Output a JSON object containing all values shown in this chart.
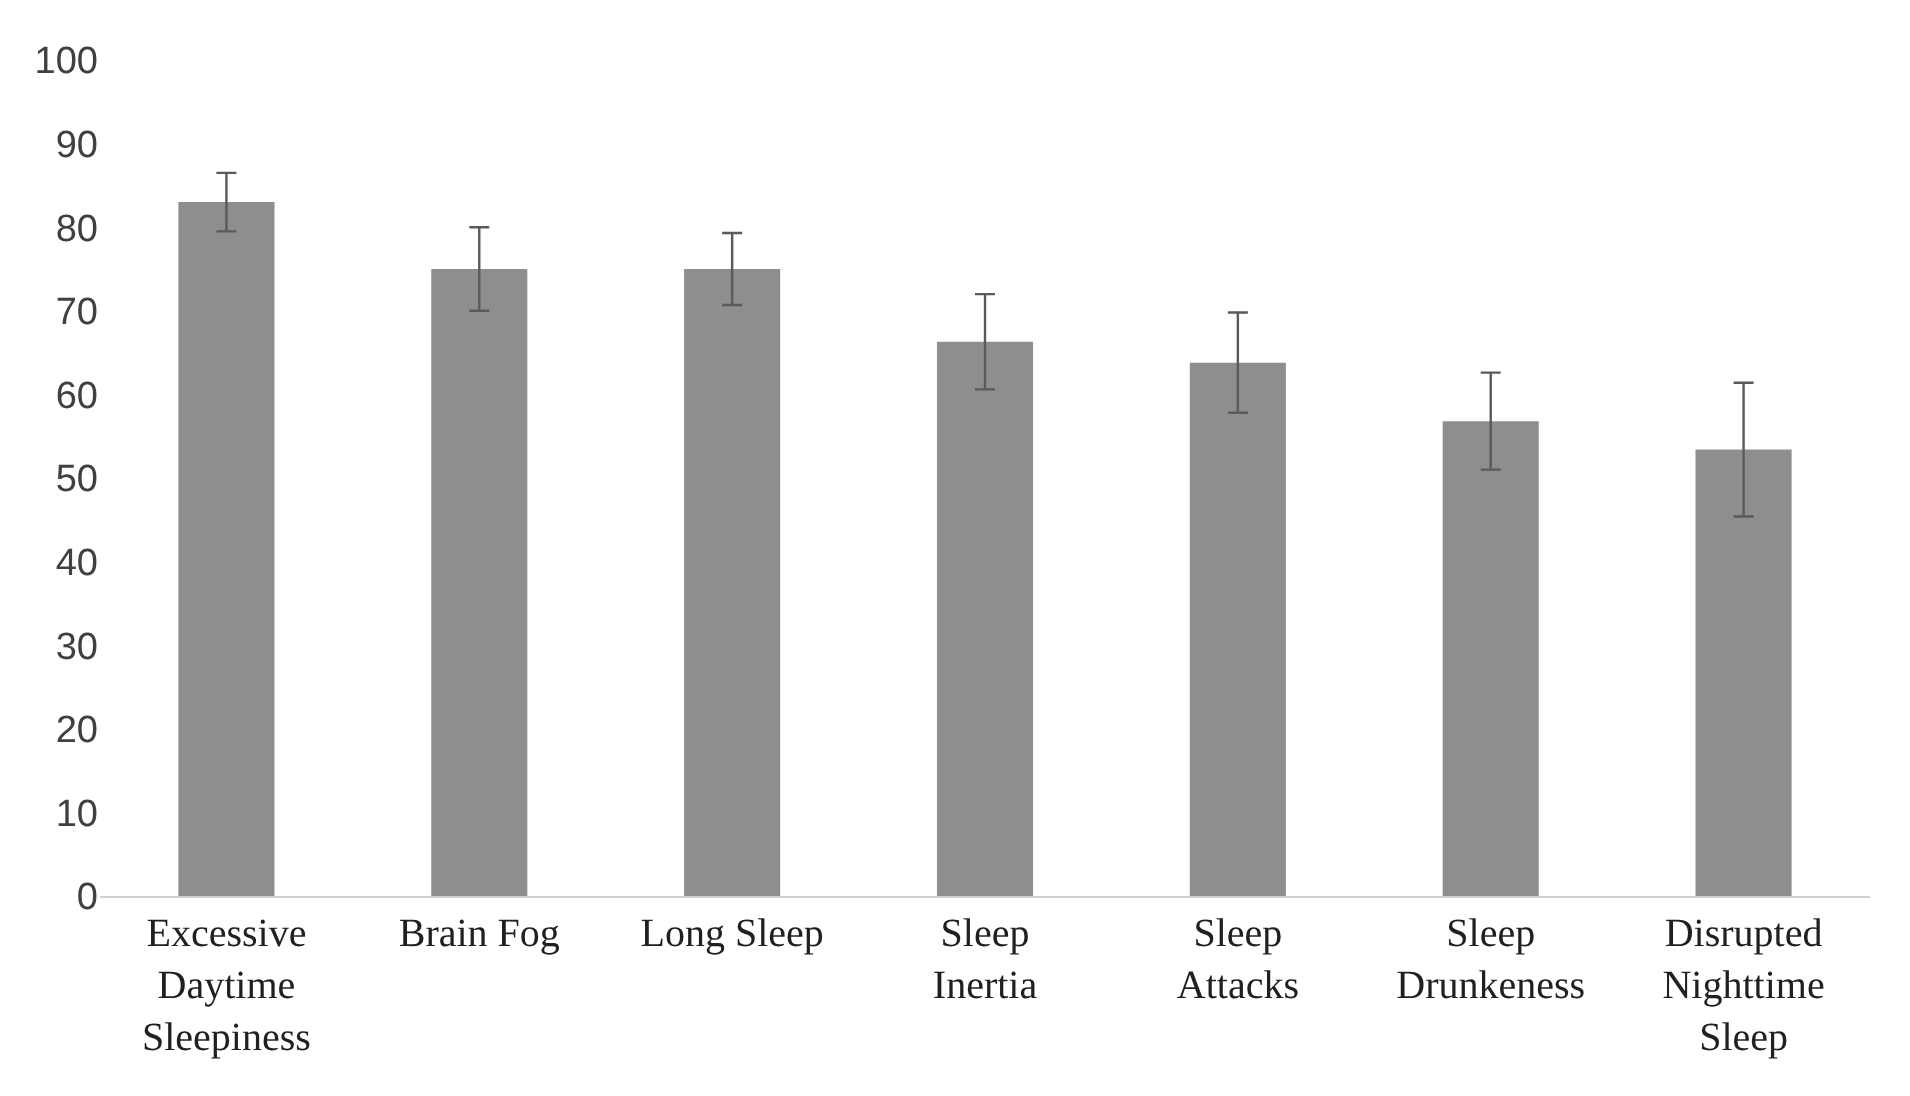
{
  "chart_data": {
    "type": "bar",
    "categories": [
      "Excessive Daytime Sleepiness",
      "Brain Fog",
      "Long Sleep",
      "Sleep Inertia",
      "Sleep Attacks",
      "Sleep Drunkeness",
      "Disrupted Nighttime Sleep"
    ],
    "values": [
      83,
      75,
      75,
      66.3,
      63.8,
      56.8,
      53.4
    ],
    "errors": [
      3.5,
      5,
      4.3,
      5.7,
      6,
      5.8,
      8
    ],
    "color": "#8e8e90",
    "ylim": [
      0,
      100
    ],
    "yticks": [
      0,
      10,
      20,
      30,
      40,
      50,
      60,
      70,
      80,
      90,
      100
    ],
    "grid": false
  }
}
